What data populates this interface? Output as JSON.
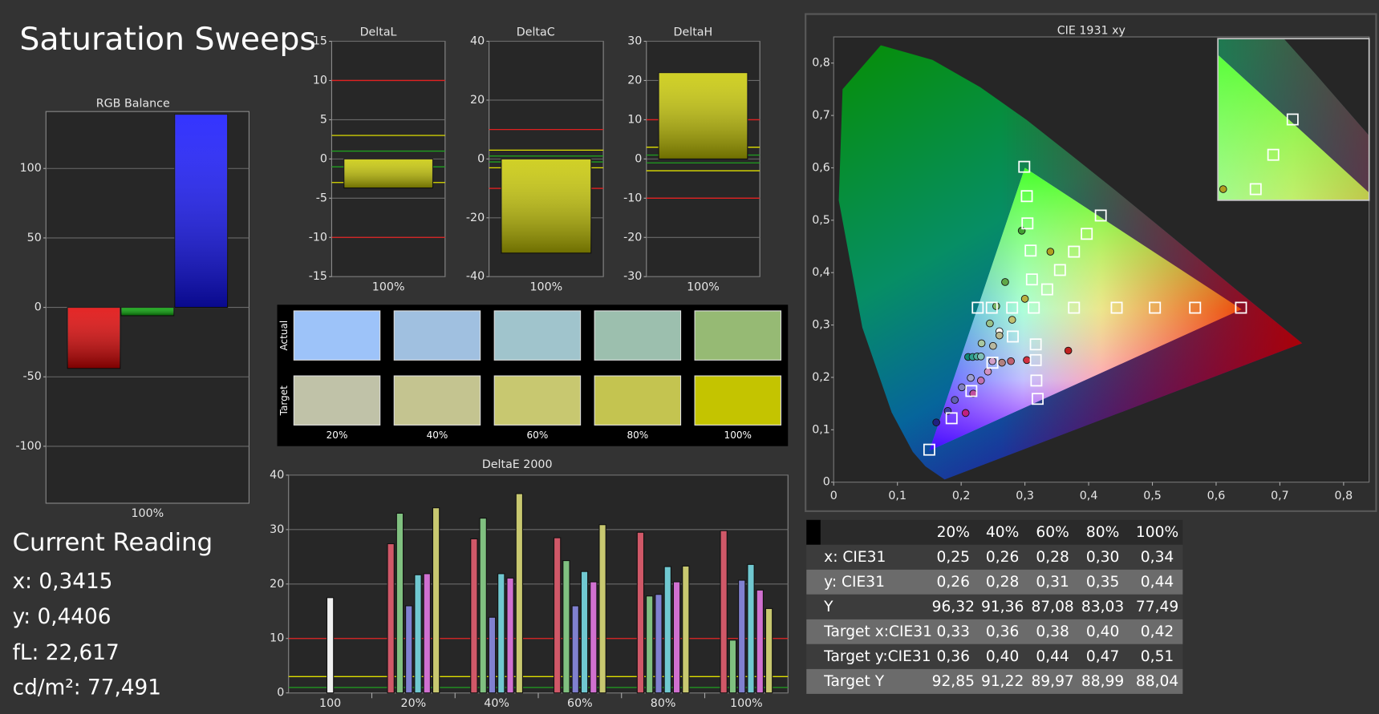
{
  "title": "Saturation Sweeps",
  "chart_data": [
    {
      "type": "bar",
      "title": "RGB Balance",
      "categories": [
        "100%"
      ],
      "series": [
        {
          "color": "#e00000",
          "values": [
            -44
          ]
        },
        {
          "color": "#00a000",
          "values": [
            -6
          ]
        },
        {
          "color": "#1010ff",
          "values": [
            139
          ]
        }
      ],
      "ylim": [
        -141,
        141
      ],
      "yticks": [
        -100,
        -50,
        0,
        50,
        100
      ],
      "grid": true
    },
    {
      "type": "bar",
      "title": "DeltaL",
      "categories": [
        "100%"
      ],
      "values": [
        -3.7
      ],
      "color": "#c8c800",
      "ylim": [
        -15,
        15
      ],
      "yticks": [
        -15,
        -10,
        -5,
        0,
        5,
        10,
        15
      ],
      "grid": true,
      "ref_lines": [
        {
          "value": 10,
          "color": "#e02020"
        },
        {
          "value": -10,
          "color": "#e02020"
        },
        {
          "value": 3,
          "color": "#e0e000"
        },
        {
          "value": -3,
          "color": "#e0e000"
        },
        {
          "value": 1,
          "color": "#20a020"
        },
        {
          "value": -1,
          "color": "#20a020"
        }
      ]
    },
    {
      "type": "bar",
      "title": "DeltaC",
      "categories": [
        "100%"
      ],
      "values": [
        -32
      ],
      "color": "#c8c800",
      "ylim": [
        -40,
        40
      ],
      "yticks": [
        -40,
        -20,
        0,
        20,
        40
      ],
      "grid": true,
      "ref_lines": [
        {
          "value": 10,
          "color": "#e02020"
        },
        {
          "value": -10,
          "color": "#e02020"
        },
        {
          "value": 3,
          "color": "#e0e000"
        },
        {
          "value": -3,
          "color": "#e0e000"
        },
        {
          "value": 1,
          "color": "#20a020"
        },
        {
          "value": -1,
          "color": "#20a020"
        }
      ]
    },
    {
      "type": "bar",
      "title": "DeltaH",
      "categories": [
        "100%"
      ],
      "values": [
        22
      ],
      "color": "#c8c800",
      "ylim": [
        -30,
        30
      ],
      "yticks": [
        -30,
        -20,
        -10,
        0,
        10,
        20,
        30
      ],
      "grid": true,
      "ref_lines": [
        {
          "value": 10,
          "color": "#e02020"
        },
        {
          "value": -10,
          "color": "#e02020"
        },
        {
          "value": 3,
          "color": "#e0e000"
        },
        {
          "value": -3,
          "color": "#e0e000"
        },
        {
          "value": 1,
          "color": "#20a020"
        },
        {
          "value": -1,
          "color": "#20a020"
        }
      ]
    },
    {
      "type": "bar",
      "title": "DeltaE 2000",
      "categories": [
        "100",
        "20%",
        "40%",
        "60%",
        "80%",
        "100%"
      ],
      "series": [
        {
          "color": "#f0f0f0",
          "values": [
            17.5,
            null,
            null,
            null,
            null,
            null
          ]
        },
        {
          "color": "#d05868",
          "values": [
            null,
            27.4,
            28.3,
            28.5,
            29.5,
            29.8
          ]
        },
        {
          "color": "#80c080",
          "values": [
            null,
            33.0,
            32.1,
            24.3,
            17.8,
            9.7
          ]
        },
        {
          "color": "#8080d0",
          "values": [
            null,
            16.0,
            13.9,
            16.0,
            18.1,
            20.7
          ]
        },
        {
          "color": "#70c8d0",
          "values": [
            null,
            21.7,
            21.9,
            22.3,
            23.2,
            23.6
          ]
        },
        {
          "color": "#d070d0",
          "values": [
            null,
            21.9,
            21.1,
            20.4,
            20.4,
            18.9
          ]
        },
        {
          "color": "#c8c870",
          "values": [
            null,
            34.0,
            36.6,
            30.9,
            23.3,
            15.5
          ]
        }
      ],
      "ylim": [
        0,
        40
      ],
      "yticks": [
        0,
        10,
        20,
        30,
        40
      ],
      "grid": true,
      "ref_lines": [
        {
          "value": 10,
          "color": "#e02020"
        },
        {
          "value": 3,
          "color": "#e0e000"
        },
        {
          "value": 1,
          "color": "#20a020"
        }
      ]
    },
    {
      "type": "scatter",
      "title": "CIE 1931 xy",
      "xlim": [
        0,
        0.84
      ],
      "ylim": [
        0,
        0.85
      ],
      "xticks": [
        0,
        {
          "value": 0.1,
          "label": "0,1"
        },
        {
          "value": 0.2,
          "label": "0,2"
        },
        {
          "value": 0.3,
          "label": "0,3"
        },
        {
          "value": 0.4,
          "label": "0,4"
        },
        {
          "value": 0.5,
          "label": "0,5"
        },
        {
          "value": 0.6,
          "label": "0,6"
        },
        {
          "value": 0.7,
          "label": "0,7"
        },
        {
          "value": 0.8,
          "label": "0,8"
        }
      ],
      "yticks": [
        0,
        {
          "value": 0.1,
          "label": "0,1"
        },
        {
          "value": 0.2,
          "label": "0,2"
        },
        {
          "value": 0.3,
          "label": "0,3"
        },
        {
          "value": 0.4,
          "label": "0,4"
        },
        {
          "value": 0.5,
          "label": "0,5"
        },
        {
          "value": 0.6,
          "label": "0,6"
        },
        {
          "value": 0.7,
          "label": "0,7"
        },
        {
          "value": 0.8,
          "label": "0,8"
        }
      ],
      "series": [
        {
          "marker": "circle",
          "x": [
            0.232,
            0.245,
            0.255,
            0.269,
            0.295,
            0.211,
            0.218,
            0.225,
            0.231,
            0.161,
            0.179,
            0.19,
            0.201,
            0.215,
            0.207,
            0.219,
            0.231,
            0.242,
            0.249,
            0.368,
            0.303,
            0.278,
            0.264,
            0.26,
            0.25,
            0.26,
            0.28,
            0.3,
            0.34
          ],
          "y": [
            0.265,
            0.303,
            0.336,
            0.382,
            0.48,
            0.239,
            0.239,
            0.24,
            0.24,
            0.114,
            0.136,
            0.157,
            0.181,
            0.199,
            0.132,
            0.169,
            0.194,
            0.211,
            0.231,
            0.251,
            0.233,
            0.231,
            0.228,
            0.288,
            0.26,
            0.28,
            0.31,
            0.35,
            0.44
          ],
          "colors": [
            "#a8c8a0",
            "#98c088",
            "#7cb868",
            "#60a848",
            "#40a030",
            "#108878",
            "#30a090",
            "#50b0a0",
            "#80c0b8",
            "#202080",
            "#4040a0",
            "#6060b0",
            "#8080c0",
            "#a0a0d0",
            "#c02080",
            "#c050a0",
            "#c070b0",
            "#d090c0",
            "#d0a0c8",
            "#c02020",
            "#d03040",
            "#c06070",
            "#b08080",
            "#ffffff",
            "#b8b8a0",
            "#b8b890",
            "#c0c070",
            "#b8b040",
            "#b0a020"
          ]
        },
        {
          "marker": "square",
          "color": "#ffffff",
          "x": [
            0.314,
            0.377,
            0.444,
            0.504,
            0.567,
            0.639,
            0.311,
            0.309,
            0.304,
            0.303,
            0.299,
            0.281,
            0.249,
            0.216,
            0.185,
            0.15,
            0.28,
            0.248,
            0.226,
            0.317,
            0.317,
            0.318,
            0.32,
            0.335,
            0.355,
            0.377,
            0.397,
            0.419
          ],
          "y": [
            0.333,
            0.333,
            0.333,
            0.333,
            0.333,
            0.333,
            0.387,
            0.442,
            0.494,
            0.546,
            0.602,
            0.278,
            0.228,
            0.174,
            0.122,
            0.062,
            0.333,
            0.333,
            0.333,
            0.263,
            0.233,
            0.194,
            0.159,
            0.368,
            0.405,
            0.44,
            0.474,
            0.509
          ]
        }
      ]
    }
  ],
  "swatches": {
    "row_labels": [
      "Actual",
      "Target"
    ],
    "columns": [
      "20%",
      "40%",
      "60%",
      "80%",
      "100%"
    ],
    "actual": [
      "#9dc3f9",
      "#a0c0e0",
      "#a0c4cc",
      "#9cbfae",
      "#96ba74"
    ],
    "target": [
      "#c0c2a8",
      "#c4c490",
      "#c8c870",
      "#c4c450",
      "#c4c400"
    ]
  },
  "current_reading": {
    "title": "Current Reading",
    "lines": [
      "x: 0,3415",
      "y: 0,4406",
      "fL: 22,617",
      "cd/m²: 77,491"
    ]
  },
  "table": {
    "columns": [
      "20%",
      "40%",
      "60%",
      "80%",
      "100%"
    ],
    "rows": [
      {
        "label": "x: CIE31",
        "values": [
          "0,25",
          "0,26",
          "0,28",
          "0,30",
          "0,34"
        ]
      },
      {
        "label": "y: CIE31",
        "values": [
          "0,26",
          "0,28",
          "0,31",
          "0,35",
          "0,44"
        ]
      },
      {
        "label": "Y",
        "values": [
          "96,32",
          "91,36",
          "87,08",
          "83,03",
          "77,49"
        ]
      },
      {
        "label": "Target x:CIE31",
        "values": [
          "0,33",
          "0,36",
          "0,38",
          "0,40",
          "0,42"
        ]
      },
      {
        "label": "Target y:CIE31",
        "values": [
          "0,36",
          "0,40",
          "0,44",
          "0,47",
          "0,51"
        ]
      },
      {
        "label": "Target Y",
        "values": [
          "92,85",
          "91,22",
          "89,97",
          "88,99",
          "88,04"
        ]
      }
    ]
  }
}
